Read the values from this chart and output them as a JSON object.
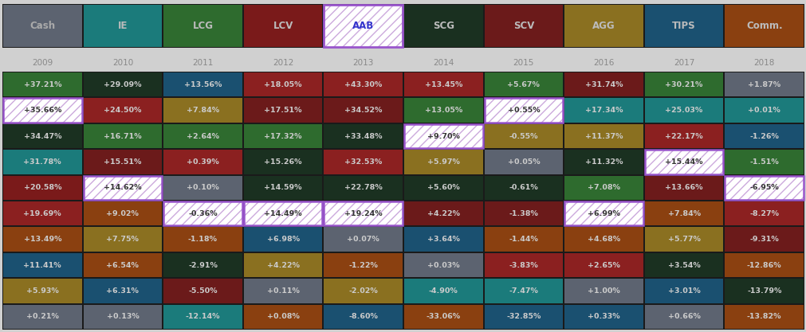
{
  "headers": [
    "Cash",
    "IE",
    "LCG",
    "LCV",
    "AAB",
    "SCG",
    "SCV",
    "AGG",
    "TIPS",
    "Comm."
  ],
  "header_colors": [
    "#5c6370",
    "#1b7b7b",
    "#2e6b2e",
    "#7a1a1a",
    "#ffffff",
    "#1a3020",
    "#6b1a1a",
    "#8a7020",
    "#1a5070",
    "#8a4010"
  ],
  "header_text_colors": [
    "#aaaaaa",
    "#bbbbbb",
    "#bbbbbb",
    "#bbbbbb",
    "#3333cc",
    "#bbbbbb",
    "#bbbbbb",
    "#bbbbbb",
    "#bbbbbb",
    "#bbbbbb"
  ],
  "header_hatched": [
    false,
    false,
    false,
    false,
    true,
    false,
    false,
    false,
    false,
    false
  ],
  "years": [
    "2009",
    "2010",
    "2011",
    "2012",
    "2013",
    "2014",
    "2015",
    "2016",
    "2017",
    "2018"
  ],
  "quilt": [
    {
      "year": "2009",
      "cells": [
        {
          "label": "+37.21%",
          "color": "#2e6b2e",
          "hatched": false,
          "border": false
        },
        {
          "label": "+35.66%",
          "color": "#ffffff",
          "hatched": true,
          "border": true
        },
        {
          "label": "+34.47%",
          "color": "#1a3020",
          "hatched": false,
          "border": false
        },
        {
          "label": "+31.78%",
          "color": "#1b7b7b",
          "hatched": false,
          "border": false
        },
        {
          "label": "+20.58%",
          "color": "#7a1a1a",
          "hatched": false,
          "border": false
        },
        {
          "label": "+19.69%",
          "color": "#8B2020",
          "hatched": false,
          "border": false
        },
        {
          "label": "+13.49%",
          "color": "#8a4010",
          "hatched": false,
          "border": false
        },
        {
          "label": "+11.41%",
          "color": "#1a5070",
          "hatched": false,
          "border": false
        },
        {
          "label": "+5.93%",
          "color": "#8a7020",
          "hatched": false,
          "border": false
        },
        {
          "label": "+0.21%",
          "color": "#5c6370",
          "hatched": false,
          "border": false
        }
      ]
    },
    {
      "year": "2010",
      "cells": [
        {
          "label": "+29.09%",
          "color": "#1a3020",
          "hatched": false,
          "border": false
        },
        {
          "label": "+24.50%",
          "color": "#8B2020",
          "hatched": false,
          "border": false
        },
        {
          "label": "+16.71%",
          "color": "#2e6b2e",
          "hatched": false,
          "border": false
        },
        {
          "label": "+15.51%",
          "color": "#6b1a1a",
          "hatched": false,
          "border": false
        },
        {
          "label": "+14.62%",
          "color": "#ffffff",
          "hatched": true,
          "border": true
        },
        {
          "label": "+9.02%",
          "color": "#8a4010",
          "hatched": false,
          "border": false
        },
        {
          "label": "+7.75%",
          "color": "#8a7020",
          "hatched": false,
          "border": false
        },
        {
          "label": "+6.54%",
          "color": "#8a4010",
          "hatched": false,
          "border": false
        },
        {
          "label": "+6.31%",
          "color": "#1a5070",
          "hatched": false,
          "border": false
        },
        {
          "label": "+0.13%",
          "color": "#5c6370",
          "hatched": false,
          "border": false
        }
      ]
    },
    {
      "year": "2011",
      "cells": [
        {
          "label": "+13.56%",
          "color": "#1a5070",
          "hatched": false,
          "border": false
        },
        {
          "label": "+7.84%",
          "color": "#8a7020",
          "hatched": false,
          "border": false
        },
        {
          "label": "+2.64%",
          "color": "#2e6b2e",
          "hatched": false,
          "border": false
        },
        {
          "label": "+0.39%",
          "color": "#8B2020",
          "hatched": false,
          "border": false
        },
        {
          "label": "+0.10%",
          "color": "#5c6370",
          "hatched": false,
          "border": false
        },
        {
          "label": "-0.36%",
          "color": "#ffffff",
          "hatched": true,
          "border": true
        },
        {
          "label": "-1.18%",
          "color": "#8a4010",
          "hatched": false,
          "border": false
        },
        {
          "label": "-2.91%",
          "color": "#1a3020",
          "hatched": false,
          "border": false
        },
        {
          "label": "-5.50%",
          "color": "#6b1a1a",
          "hatched": false,
          "border": false
        },
        {
          "label": "-12.14%",
          "color": "#1b7b7b",
          "hatched": false,
          "border": false
        }
      ]
    },
    {
      "year": "2012",
      "cells": [
        {
          "label": "+18.05%",
          "color": "#8B2020",
          "hatched": false,
          "border": false
        },
        {
          "label": "+17.51%",
          "color": "#6b1a1a",
          "hatched": false,
          "border": false
        },
        {
          "label": "+17.32%",
          "color": "#2e6b2e",
          "hatched": false,
          "border": false
        },
        {
          "label": "+15.26%",
          "color": "#1a3020",
          "hatched": false,
          "border": false
        },
        {
          "label": "+14.59%",
          "color": "#1a3020",
          "hatched": false,
          "border": false
        },
        {
          "label": "+14.49%",
          "color": "#ffffff",
          "hatched": true,
          "border": true
        },
        {
          "label": "+6.98%",
          "color": "#1a5070",
          "hatched": false,
          "border": false
        },
        {
          "label": "+4.22%",
          "color": "#8a7020",
          "hatched": false,
          "border": false
        },
        {
          "label": "+0.11%",
          "color": "#5c6370",
          "hatched": false,
          "border": false
        },
        {
          "label": "+0.08%",
          "color": "#8a4010",
          "hatched": false,
          "border": false
        }
      ]
    },
    {
      "year": "2013",
      "cells": [
        {
          "label": "+43.30%",
          "color": "#8B2020",
          "hatched": false,
          "border": false
        },
        {
          "label": "+34.52%",
          "color": "#6b1a1a",
          "hatched": false,
          "border": false
        },
        {
          "label": "+33.48%",
          "color": "#1a3020",
          "hatched": false,
          "border": false
        },
        {
          "label": "+32.53%",
          "color": "#8B2020",
          "hatched": false,
          "border": false
        },
        {
          "label": "+22.78%",
          "color": "#1a3020",
          "hatched": false,
          "border": false
        },
        {
          "label": "+19.24%",
          "color": "#ffffff",
          "hatched": true,
          "border": true
        },
        {
          "label": "+0.07%",
          "color": "#5c6370",
          "hatched": false,
          "border": false
        },
        {
          "label": "-1.22%",
          "color": "#8a4010",
          "hatched": false,
          "border": false
        },
        {
          "label": "-2.02%",
          "color": "#8a7020",
          "hatched": false,
          "border": false
        },
        {
          "label": "-8.60%",
          "color": "#1a5070",
          "hatched": false,
          "border": false
        }
      ]
    },
    {
      "year": "2014",
      "cells": [
        {
          "label": "+13.45%",
          "color": "#8B2020",
          "hatched": false,
          "border": false
        },
        {
          "label": "+13.05%",
          "color": "#2e6b2e",
          "hatched": false,
          "border": false
        },
        {
          "label": "+9.70%",
          "color": "#ffffff",
          "hatched": true,
          "border": true
        },
        {
          "label": "+5.97%",
          "color": "#8a7020",
          "hatched": false,
          "border": false
        },
        {
          "label": "+5.60%",
          "color": "#1a3020",
          "hatched": false,
          "border": false
        },
        {
          "label": "+4.22%",
          "color": "#6b1a1a",
          "hatched": false,
          "border": false
        },
        {
          "label": "+3.64%",
          "color": "#1a5070",
          "hatched": false,
          "border": false
        },
        {
          "label": "+0.03%",
          "color": "#5c6370",
          "hatched": false,
          "border": false
        },
        {
          "label": "-4.90%",
          "color": "#1b7b7b",
          "hatched": false,
          "border": false
        },
        {
          "label": "-33.06%",
          "color": "#8a4010",
          "hatched": false,
          "border": false
        }
      ]
    },
    {
      "year": "2015",
      "cells": [
        {
          "label": "+5.67%",
          "color": "#2e6b2e",
          "hatched": false,
          "border": false
        },
        {
          "label": "+0.55%",
          "color": "#ffffff",
          "hatched": true,
          "border": true
        },
        {
          "label": "-0.55%",
          "color": "#8a7020",
          "hatched": false,
          "border": false
        },
        {
          "label": "+0.05%",
          "color": "#5c6370",
          "hatched": false,
          "border": false
        },
        {
          "label": "-0.61%",
          "color": "#1a3020",
          "hatched": false,
          "border": false
        },
        {
          "label": "-1.38%",
          "color": "#6b1a1a",
          "hatched": false,
          "border": false
        },
        {
          "label": "-1.44%",
          "color": "#8a4010",
          "hatched": false,
          "border": false
        },
        {
          "label": "-3.83%",
          "color": "#8B2020",
          "hatched": false,
          "border": false
        },
        {
          "label": "-7.47%",
          "color": "#1b7b7b",
          "hatched": false,
          "border": false
        },
        {
          "label": "-32.85%",
          "color": "#1a5070",
          "hatched": false,
          "border": false
        }
      ]
    },
    {
      "year": "2016",
      "cells": [
        {
          "label": "+31.74%",
          "color": "#6b1a1a",
          "hatched": false,
          "border": false
        },
        {
          "label": "+17.34%",
          "color": "#1b7b7b",
          "hatched": false,
          "border": false
        },
        {
          "label": "+11.37%",
          "color": "#8a7020",
          "hatched": false,
          "border": false
        },
        {
          "label": "+11.32%",
          "color": "#1a3020",
          "hatched": false,
          "border": false
        },
        {
          "label": "+7.08%",
          "color": "#2e6b2e",
          "hatched": false,
          "border": false
        },
        {
          "label": "+6.99%",
          "color": "#ffffff",
          "hatched": true,
          "border": true
        },
        {
          "label": "+4.68%",
          "color": "#8a4010",
          "hatched": false,
          "border": false
        },
        {
          "label": "+2.65%",
          "color": "#8B2020",
          "hatched": false,
          "border": false
        },
        {
          "label": "+1.00%",
          "color": "#5c6370",
          "hatched": false,
          "border": false
        },
        {
          "label": "+0.33%",
          "color": "#1a5070",
          "hatched": false,
          "border": false
        }
      ]
    },
    {
      "year": "2017",
      "cells": [
        {
          "label": "+30.21%",
          "color": "#2e6b2e",
          "hatched": false,
          "border": false
        },
        {
          "label": "+25.03%",
          "color": "#1b7b7b",
          "hatched": false,
          "border": false
        },
        {
          "label": "+22.17%",
          "color": "#8B2020",
          "hatched": false,
          "border": false
        },
        {
          "label": "+15.44%",
          "color": "#ffffff",
          "hatched": true,
          "border": true
        },
        {
          "label": "+13.66%",
          "color": "#6b1a1a",
          "hatched": false,
          "border": false
        },
        {
          "label": "+7.84%",
          "color": "#8a4010",
          "hatched": false,
          "border": false
        },
        {
          "label": "+5.77%",
          "color": "#8a7020",
          "hatched": false,
          "border": false
        },
        {
          "label": "+3.54%",
          "color": "#1a3020",
          "hatched": false,
          "border": false
        },
        {
          "label": "+3.01%",
          "color": "#1a5070",
          "hatched": false,
          "border": false
        },
        {
          "label": "+0.66%",
          "color": "#5c6370",
          "hatched": false,
          "border": false
        }
      ]
    },
    {
      "year": "2018",
      "cells": [
        {
          "label": "+1.87%",
          "color": "#5c6370",
          "hatched": false,
          "border": false
        },
        {
          "label": "+0.01%",
          "color": "#1b7b7b",
          "hatched": false,
          "border": false
        },
        {
          "label": "-1.26%",
          "color": "#1a5070",
          "hatched": false,
          "border": false
        },
        {
          "label": "-1.51%",
          "color": "#2e6b2e",
          "hatched": false,
          "border": false
        },
        {
          "label": "-6.95%",
          "color": "#ffffff",
          "hatched": true,
          "border": true
        },
        {
          "label": "-8.27%",
          "color": "#8B2020",
          "hatched": false,
          "border": false
        },
        {
          "label": "-9.31%",
          "color": "#6b1a1a",
          "hatched": false,
          "border": false
        },
        {
          "label": "-12.86%",
          "color": "#8a4010",
          "hatched": false,
          "border": false
        },
        {
          "label": "-13.79%",
          "color": "#1a3020",
          "hatched": false,
          "border": false
        },
        {
          "label": "-13.82%",
          "color": "#8a4010",
          "hatched": false,
          "border": false
        }
      ]
    }
  ],
  "bg_color": "#1a1a1a",
  "outer_bg": "#d0d0d0",
  "cell_text_color": "#cccccc",
  "hatched_text_color": "#333333",
  "border_color": "#9955cc",
  "hatch_color": "#ccaadd",
  "year_text_color": "#888888",
  "n_rows": 10,
  "n_cols": 10,
  "fig_width": 10.12,
  "fig_height": 4.17,
  "dpi": 100
}
